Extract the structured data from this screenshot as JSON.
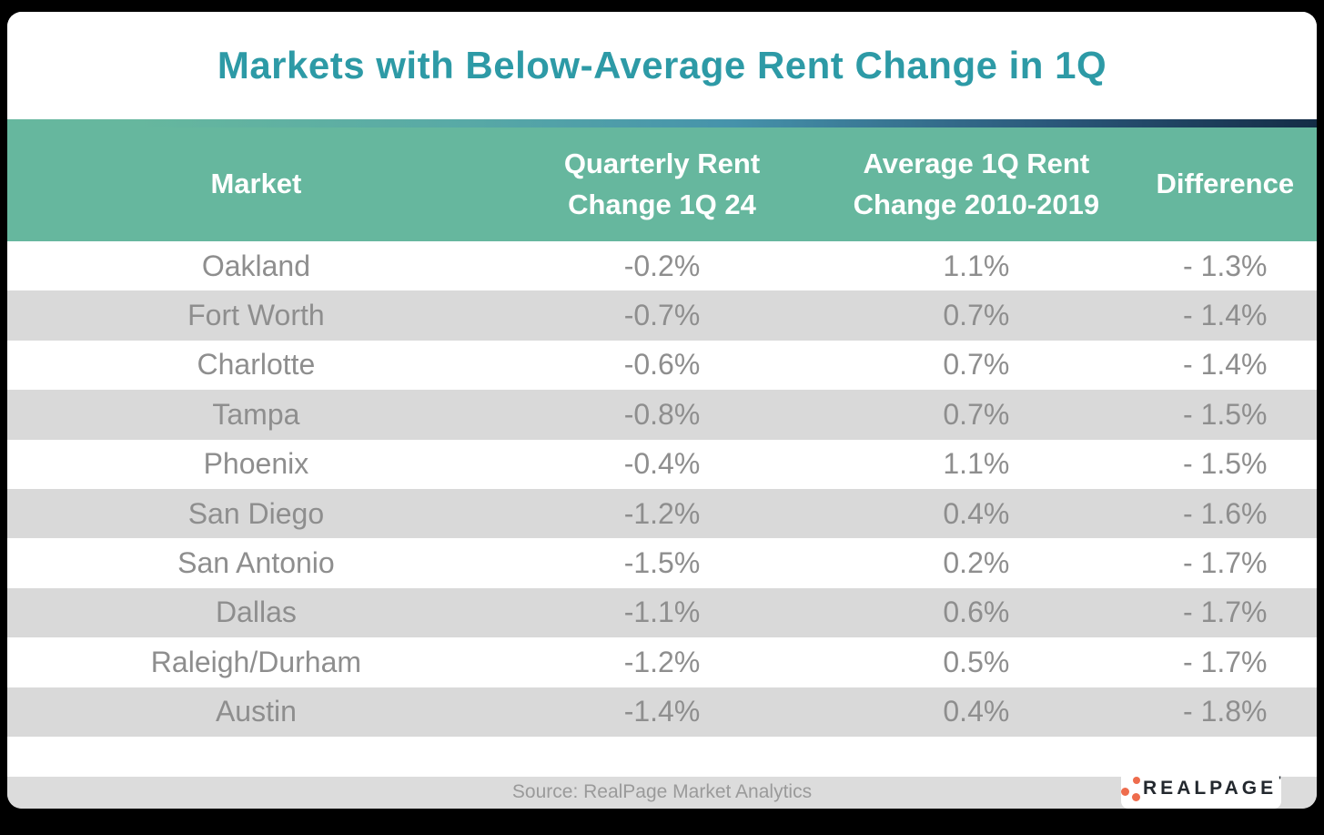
{
  "title": "Markets with Below-Average Rent Change in 1Q",
  "table": {
    "columns": [
      {
        "line1": "Market",
        "line2": ""
      },
      {
        "line1": "Quarterly Rent",
        "line2": "Change 1Q 24"
      },
      {
        "line1": "Average 1Q Rent",
        "line2": "Change 2010-2019"
      },
      {
        "line1": "Difference",
        "line2": ""
      }
    ],
    "rows": [
      {
        "market": "Oakland",
        "q1_24": "-0.2%",
        "avg_1q": "1.1%",
        "difference": "- 1.3%"
      },
      {
        "market": "Fort Worth",
        "q1_24": "-0.7%",
        "avg_1q": "0.7%",
        "difference": "- 1.4%"
      },
      {
        "market": "Charlotte",
        "q1_24": "-0.6%",
        "avg_1q": "0.7%",
        "difference": "- 1.4%"
      },
      {
        "market": "Tampa",
        "q1_24": "-0.8%",
        "avg_1q": "0.7%",
        "difference": "- 1.5%"
      },
      {
        "market": "Phoenix",
        "q1_24": "-0.4%",
        "avg_1q": "1.1%",
        "difference": "- 1.5%"
      },
      {
        "market": "San Diego",
        "q1_24": "-1.2%",
        "avg_1q": "0.4%",
        "difference": "- 1.6%"
      },
      {
        "market": "San Antonio",
        "q1_24": "-1.5%",
        "avg_1q": "0.2%",
        "difference": "- 1.7%"
      },
      {
        "market": "Dallas",
        "q1_24": "-1.1%",
        "avg_1q": "0.6%",
        "difference": "- 1.7%"
      },
      {
        "market": "Raleigh/Durham",
        "q1_24": "-1.2%",
        "avg_1q": "0.5%",
        "difference": "- 1.7%"
      },
      {
        "market": "Austin",
        "q1_24": "-1.4%",
        "avg_1q": "0.4%",
        "difference": "- 1.8%"
      }
    ]
  },
  "footer": {
    "source": "Source: RealPage Market Analytics",
    "logo_text": "REALPAGE",
    "logo_mark": "'"
  },
  "colors": {
    "title_teal": "#2d9aa6",
    "header_green": "#66b79e",
    "stripe_gray": "#d9d9d9",
    "row_text_gray": "#8e8e8e",
    "footer_bar_gray": "#dcdcdc",
    "footer_text_gray": "#9a9a9a",
    "gradient_navy": "#142c46",
    "logo_orange": "#ee6c4d",
    "logo_dark": "#23282e",
    "background_black": "#000000"
  },
  "chart_data": {
    "type": "table",
    "title": "Markets with Below-Average Rent Change in 1Q",
    "columns": [
      "Market",
      "Quarterly Rent Change 1Q 24",
      "Average 1Q Rent Change 2010-2019",
      "Difference"
    ],
    "categories": [
      "Oakland",
      "Fort Worth",
      "Charlotte",
      "Tampa",
      "Phoenix",
      "San Diego",
      "San Antonio",
      "Dallas",
      "Raleigh/Durham",
      "Austin"
    ],
    "series": [
      {
        "name": "Quarterly Rent Change 1Q 24 (%)",
        "values": [
          -0.2,
          -0.7,
          -0.6,
          -0.8,
          -0.4,
          -1.2,
          -1.5,
          -1.1,
          -1.2,
          -1.4
        ]
      },
      {
        "name": "Average 1Q Rent Change 2010-2019 (%)",
        "values": [
          1.1,
          0.7,
          0.7,
          0.7,
          1.1,
          0.4,
          0.2,
          0.6,
          0.5,
          0.4
        ]
      },
      {
        "name": "Difference (%)",
        "values": [
          -1.3,
          -1.4,
          -1.4,
          -1.5,
          -1.5,
          -1.6,
          -1.7,
          -1.7,
          -1.7,
          -1.8
        ]
      }
    ],
    "source": "Source: RealPage Market Analytics"
  }
}
